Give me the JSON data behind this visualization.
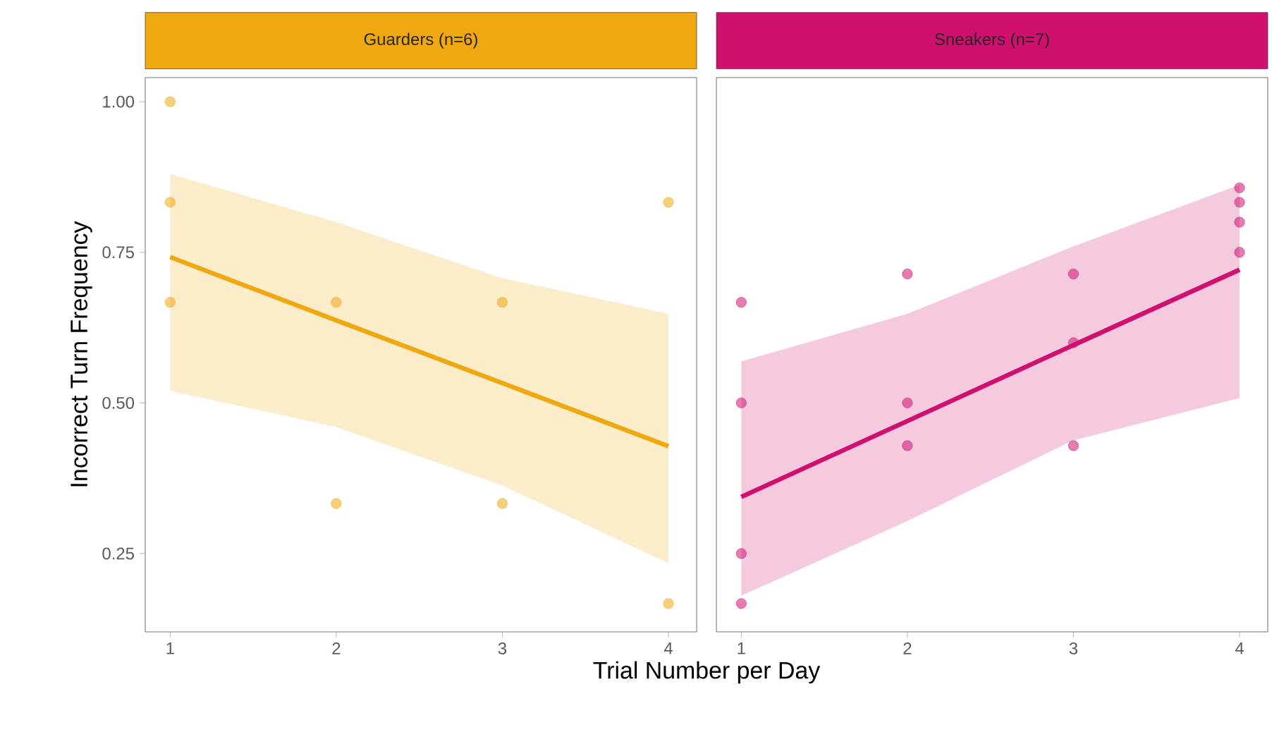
{
  "chart_data": [
    {
      "type": "scatter",
      "title": "Guarders (n=6)",
      "xlabel": "Trial Number per Day",
      "ylabel": "Incorrect Turn Frequency",
      "xlim": [
        0.85,
        4.17
      ],
      "ylim": [
        0.12,
        1.04
      ],
      "xticks": [
        1,
        2,
        3,
        4
      ],
      "yticks": [
        {
          "value": 0.25,
          "label": "0.25"
        },
        {
          "value": 0.5,
          "label": "0.50"
        },
        {
          "value": 0.75,
          "label": "0.75"
        },
        {
          "value": 1.0,
          "label": "1.00"
        }
      ],
      "grid": false,
      "series": [
        {
          "marker": "circle",
          "color": "#efa80f",
          "x": [
            1,
            1,
            1,
            2,
            2,
            3,
            3,
            4,
            4
          ],
          "values": [
            1.0,
            0.833,
            0.667,
            0.667,
            0.333,
            0.667,
            0.333,
            0.833,
            0.167
          ]
        },
        {
          "type": "line",
          "marker": "none",
          "color": "#efa80f",
          "x": [
            1,
            2,
            3,
            4
          ],
          "values": [
            0.742,
            0.637,
            0.533,
            0.428
          ],
          "lower": [
            0.52,
            0.46,
            0.363,
            0.234
          ],
          "upper": [
            0.88,
            0.8,
            0.707,
            0.648
          ]
        }
      ]
    },
    {
      "type": "scatter",
      "title": "Sneakers (n=7)",
      "xlim": [
        0.85,
        4.17
      ],
      "ylim": [
        0.12,
        1.04
      ],
      "xticks": [
        1,
        2,
        3,
        4
      ],
      "tick_labels": "x",
      "grid": false,
      "series": [
        {
          "marker": "circle",
          "color": "#d0106f",
          "x": [
            1,
            1,
            1,
            1,
            2,
            2,
            2,
            3,
            3,
            3,
            4,
            4,
            4,
            4
          ],
          "values": [
            0.667,
            0.5,
            0.25,
            0.167,
            0.714,
            0.5,
            0.429,
            0.714,
            0.6,
            0.429,
            0.857,
            0.833,
            0.8,
            0.75
          ]
        },
        {
          "type": "line",
          "marker": "none",
          "color": "#d0106f",
          "x": [
            1,
            2,
            3,
            4
          ],
          "values": [
            0.344,
            0.47,
            0.596,
            0.721
          ],
          "lower": [
            0.18,
            0.304,
            0.438,
            0.508
          ],
          "upper": [
            0.569,
            0.648,
            0.76,
            0.862
          ]
        }
      ]
    }
  ]
}
